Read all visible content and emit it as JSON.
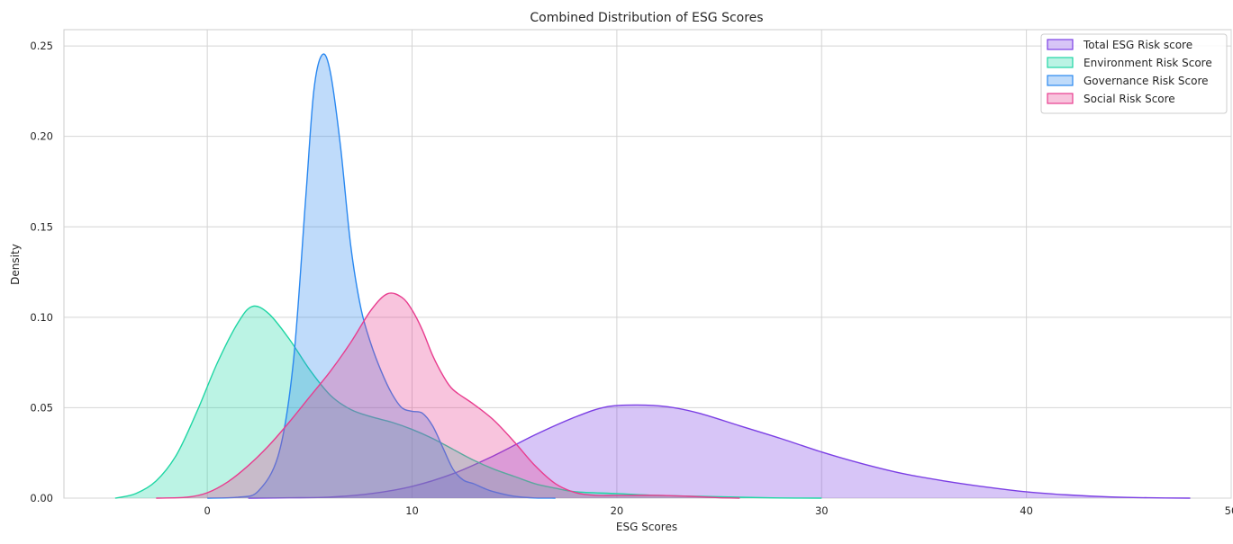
{
  "chart_data": {
    "type": "area",
    "title": "Combined Distribution of ESG Scores",
    "xlabel": "ESG Scores",
    "ylabel": "Density",
    "xlim": [
      -7,
      50
    ],
    "ylim": [
      0,
      0.259
    ],
    "xticks": [
      0,
      10,
      20,
      30,
      40,
      50
    ],
    "yticks": [
      0.0,
      0.05,
      0.1,
      0.15,
      0.2,
      0.25
    ],
    "xtick_labels": [
      "0",
      "10",
      "20",
      "30",
      "40",
      "50"
    ],
    "ytick_labels": [
      "0.00",
      "0.05",
      "0.10",
      "0.15",
      "0.20",
      "0.25"
    ],
    "grid": true,
    "legend_position": "top-right",
    "series": [
      {
        "name": "Total ESG Risk score",
        "color": "#7b3fe4",
        "points": [
          [
            2,
            0.0
          ],
          [
            4,
            0.0002
          ],
          [
            6,
            0.0006
          ],
          [
            8,
            0.0025
          ],
          [
            10,
            0.0065
          ],
          [
            12,
            0.0135
          ],
          [
            14,
            0.0235
          ],
          [
            16,
            0.035
          ],
          [
            18,
            0.045
          ],
          [
            19.5,
            0.0505
          ],
          [
            21,
            0.0515
          ],
          [
            22.5,
            0.0505
          ],
          [
            24,
            0.047
          ],
          [
            26,
            0.04
          ],
          [
            28,
            0.033
          ],
          [
            30,
            0.0255
          ],
          [
            32,
            0.019
          ],
          [
            34,
            0.0135
          ],
          [
            36,
            0.0095
          ],
          [
            38,
            0.0062
          ],
          [
            40,
            0.0035
          ],
          [
            42,
            0.0018
          ],
          [
            44,
            0.0007
          ],
          [
            46,
            0.0002
          ],
          [
            48,
            0.0
          ]
        ]
      },
      {
        "name": "Environment Risk Score",
        "color": "#1fd6a4",
        "points": [
          [
            -4.5,
            0.0
          ],
          [
            -3.5,
            0.0025
          ],
          [
            -2.5,
            0.0095
          ],
          [
            -1.5,
            0.024
          ],
          [
            -0.5,
            0.048
          ],
          [
            0.5,
            0.075
          ],
          [
            1.5,
            0.097
          ],
          [
            2.2,
            0.106
          ],
          [
            3,
            0.102
          ],
          [
            4,
            0.088
          ],
          [
            5,
            0.071
          ],
          [
            6,
            0.057
          ],
          [
            7,
            0.049
          ],
          [
            8,
            0.045
          ],
          [
            9,
            0.042
          ],
          [
            10,
            0.038
          ],
          [
            11,
            0.033
          ],
          [
            12,
            0.027
          ],
          [
            13,
            0.021
          ],
          [
            14,
            0.016
          ],
          [
            15,
            0.012
          ],
          [
            16,
            0.008
          ],
          [
            17,
            0.0055
          ],
          [
            18,
            0.0035
          ],
          [
            20,
            0.0025
          ],
          [
            22,
            0.0015
          ],
          [
            24,
            0.001
          ],
          [
            26,
            0.0005
          ],
          [
            28,
            0.0001
          ],
          [
            30,
            0.0
          ]
        ]
      },
      {
        "name": "Governance Risk Score",
        "color": "#2a88f0",
        "points": [
          [
            0,
            0.0
          ],
          [
            1.5,
            0.0005
          ],
          [
            2.5,
            0.004
          ],
          [
            3.5,
            0.025
          ],
          [
            4.2,
            0.075
          ],
          [
            4.8,
            0.165
          ],
          [
            5.2,
            0.225
          ],
          [
            5.6,
            0.245
          ],
          [
            6,
            0.236
          ],
          [
            6.5,
            0.195
          ],
          [
            7,
            0.14
          ],
          [
            7.5,
            0.105
          ],
          [
            8,
            0.085
          ],
          [
            8.5,
            0.07
          ],
          [
            9,
            0.058
          ],
          [
            9.5,
            0.05
          ],
          [
            10,
            0.048
          ],
          [
            10.5,
            0.047
          ],
          [
            11,
            0.04
          ],
          [
            11.5,
            0.028
          ],
          [
            12,
            0.016
          ],
          [
            12.5,
            0.01
          ],
          [
            13,
            0.008
          ],
          [
            13.5,
            0.0055
          ],
          [
            14,
            0.0035
          ],
          [
            15,
            0.001
          ],
          [
            16,
            0.0001
          ],
          [
            17,
            0.0
          ]
        ]
      },
      {
        "name": "Social Risk Score",
        "color": "#e83d8f",
        "points": [
          [
            -2.5,
            0.0
          ],
          [
            -1,
            0.0005
          ],
          [
            0,
            0.003
          ],
          [
            1,
            0.009
          ],
          [
            2,
            0.018
          ],
          [
            3,
            0.029
          ],
          [
            4,
            0.042
          ],
          [
            5,
            0.056
          ],
          [
            6,
            0.07
          ],
          [
            7,
            0.086
          ],
          [
            8,
            0.104
          ],
          [
            8.8,
            0.113
          ],
          [
            9.5,
            0.111
          ],
          [
            10,
            0.104
          ],
          [
            10.5,
            0.093
          ],
          [
            11,
            0.079
          ],
          [
            11.5,
            0.068
          ],
          [
            12,
            0.06
          ],
          [
            13,
            0.052
          ],
          [
            14,
            0.043
          ],
          [
            15,
            0.031
          ],
          [
            16,
            0.018
          ],
          [
            17,
            0.008
          ],
          [
            18,
            0.003
          ],
          [
            19,
            0.0015
          ],
          [
            20,
            0.0015
          ],
          [
            22,
            0.0015
          ],
          [
            24,
            0.0008
          ],
          [
            25,
            0.0002
          ],
          [
            26,
            0.0
          ]
        ]
      }
    ]
  }
}
